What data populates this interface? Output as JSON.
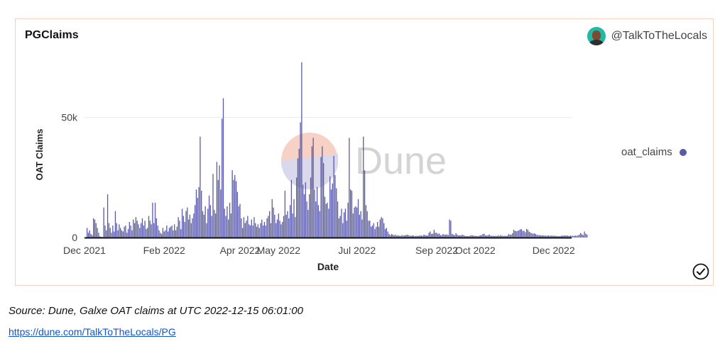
{
  "card": {
    "title": "PGClaims",
    "author": "@TalkToTheLocals",
    "watermark": "Dune"
  },
  "footer": {
    "source": "Source: Dune, Galxe OAT claims at UTC 2022-12-15 06:01:00",
    "link": "https://dune.com/TalkToTheLocals/PG"
  },
  "colors": {
    "bar": "#5b5aa6",
    "card_border": "#f3cfc6",
    "link": "#1155cc"
  },
  "icons": {
    "avatar": "user-avatar",
    "verified": "check-circle-icon"
  },
  "chart_data": {
    "type": "bar",
    "xlabel": "Date",
    "ylabel": "OAT Claims",
    "ylim": [
      0,
      75000
    ],
    "yticks": [
      {
        "value": 0,
        "label": "0"
      },
      {
        "value": 50000,
        "label": "50k"
      }
    ],
    "xlim": [
      "2021-12-01",
      "2022-12-15"
    ],
    "xticks": [
      {
        "date": "2021-12-01",
        "label": "Dec 2021"
      },
      {
        "date": "2022-02-01",
        "label": "Feb 2022"
      },
      {
        "date": "2022-04-01",
        "label": "Apr 2022"
      },
      {
        "date": "2022-05-01",
        "label": "May 2022"
      },
      {
        "date": "2022-07-01",
        "label": "Jul 2022"
      },
      {
        "date": "2022-09-01",
        "label": "Sep 2022"
      },
      {
        "date": "2022-10-01",
        "label": "Oct 2022"
      },
      {
        "date": "2022-12-01",
        "label": "Dec 2022"
      }
    ],
    "grid": true,
    "legend_position": "right",
    "series": [
      {
        "name": "oat_claims",
        "start_date": "2021-12-03",
        "interval_days": 1,
        "values": [
          4000,
          2000,
          3000,
          1500,
          1000,
          8000,
          7500,
          6000,
          4000,
          2000,
          500,
          300,
          200,
          12500,
          5000,
          3000,
          18000,
          6000,
          4000,
          2000,
          5000,
          2500,
          11000,
          6000,
          3000,
          5500,
          4000,
          3000,
          2500,
          4500,
          5000,
          2000,
          3500,
          6500,
          5000,
          3000,
          7500,
          6000,
          8500,
          7000,
          5500,
          4000,
          6000,
          8000,
          5000,
          7000,
          3500,
          4000,
          9000,
          7000,
          5500,
          14500,
          6000,
          14500,
          8000,
          5000,
          3000,
          2000,
          1500,
          4000,
          2500,
          3000,
          5000,
          2500,
          4000,
          4500,
          5000,
          3000,
          5500,
          3000,
          4500,
          8500,
          7000,
          3500,
          12000,
          9000,
          6500,
          11000,
          12500,
          7500,
          9500,
          6000,
          8000,
          10000,
          13500,
          20000,
          16500,
          21000,
          42000,
          19500,
          11000,
          9500,
          13000,
          6000,
          12000,
          17500,
          13500,
          9000,
          26500,
          11500,
          10000,
          31500,
          24000,
          30000,
          20000,
          49500,
          58000,
          12000,
          9000,
          13000,
          7500,
          14500,
          10000,
          28000,
          24000,
          26000,
          23500,
          19000,
          13000,
          14000,
          8000,
          4000,
          8500,
          6000,
          7000,
          9000,
          5500,
          5000,
          7500,
          5000,
          8500,
          6000,
          4500,
          5500,
          4000,
          6000,
          7500,
          5000,
          6500,
          5000,
          8000,
          9000,
          11000,
          6000,
          16000,
          12500,
          9500,
          6000,
          7500,
          10000,
          7000,
          5500,
          6500,
          9000,
          19500,
          9500,
          11000,
          8000,
          13500,
          24000,
          10000,
          16000,
          8500,
          25000,
          33000,
          37000,
          48000,
          73000,
          22000,
          18000,
          23000,
          15000,
          11500,
          18000,
          25000,
          38000,
          41500,
          20000,
          15000,
          21000,
          13500,
          11000,
          33500,
          38000,
          31000,
          17000,
          14000,
          14500,
          12000,
          25500,
          20000,
          22500,
          34000,
          26000,
          20500,
          15000,
          8000,
          9000,
          12000,
          6000,
          10500,
          12000,
          7000,
          14500,
          41500,
          20000,
          19500,
          10000,
          12500,
          13000,
          12500,
          16000,
          9500,
          11000,
          7500,
          42000,
          28000,
          13500,
          11000,
          7000,
          7000,
          4500,
          5000,
          6000,
          3500,
          4500,
          6500,
          4500,
          7500,
          8500,
          8000,
          6000,
          3500,
          4000,
          2500,
          1500,
          1000,
          1500,
          1200,
          900,
          1200,
          800,
          900,
          700,
          700,
          1000,
          800,
          900,
          1000,
          1200,
          1000,
          800,
          700,
          900,
          800,
          600,
          700,
          700,
          700,
          800,
          900,
          700,
          1200,
          1000,
          800,
          900,
          2000,
          2500,
          1500,
          1600,
          3200,
          2000,
          2000,
          1500,
          1700,
          1000,
          1000,
          1500,
          1200,
          1100,
          1300,
          1000,
          7500,
          7000,
          1500,
          1200,
          1000,
          1800,
          1200,
          900,
          900,
          900,
          1200,
          1000,
          700,
          600,
          600,
          600,
          800,
          900,
          900,
          700,
          700,
          700,
          600,
          700,
          900,
          1000,
          1500,
          1500,
          900,
          800,
          900,
          1300,
          800,
          700,
          700,
          600,
          700,
          600,
          1000,
          600,
          1000,
          700,
          700,
          700,
          700,
          700,
          1400,
          1200,
          1200,
          1800,
          3200,
          2800,
          2600,
          2800,
          3000,
          3400,
          3500,
          2800,
          2800,
          2200,
          3600,
          3200,
          2400,
          2100,
          1800,
          1500,
          1800,
          1500,
          1100,
          1000,
          1000,
          900,
          900,
          900,
          800,
          800,
          700,
          900,
          700,
          800,
          800,
          700,
          700,
          700,
          600,
          600,
          600,
          700,
          800,
          800,
          900,
          800,
          800,
          600,
          900,
          700,
          700,
          700,
          800,
          700,
          900,
          1200,
          1900,
          1400,
          1000,
          2500,
          1600,
          1200
        ]
      }
    ]
  }
}
